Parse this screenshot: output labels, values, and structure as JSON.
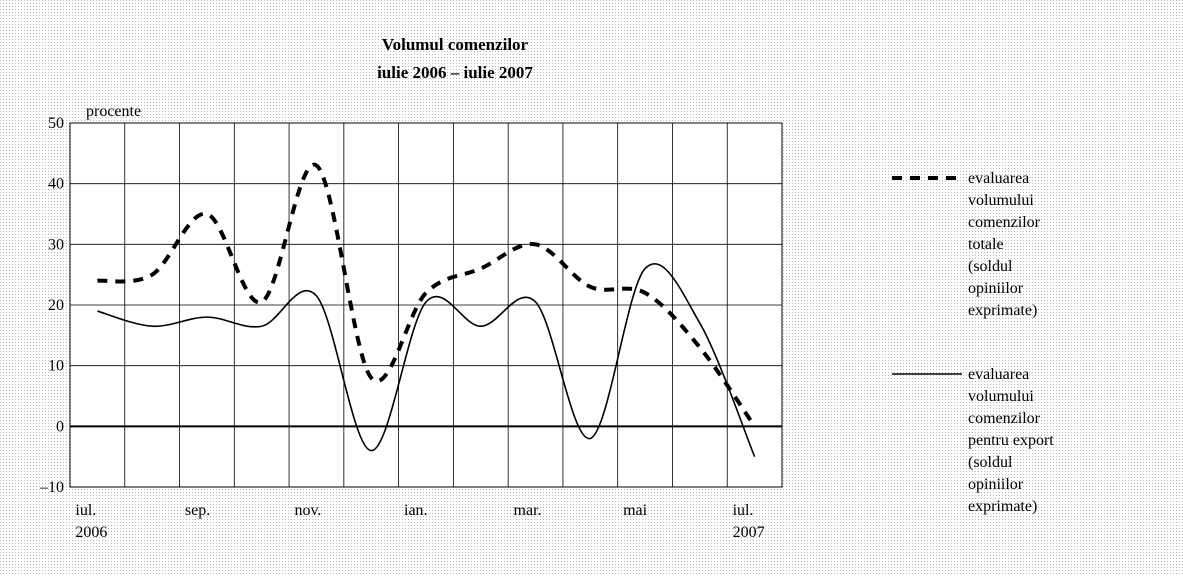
{
  "chart_data": {
    "type": "line",
    "title": "Volumul comenzilor",
    "subtitle": "iulie 2006 – iulie 2007",
    "ylabel": "procente",
    "categories": [
      "iul. 2006",
      null,
      "sep.",
      null,
      "nov.",
      null,
      "ian.",
      null,
      "mar.",
      null,
      "mai",
      null,
      "iul. 2007"
    ],
    "series": [
      {
        "name": "evaluarea volumului comenzilor totale (soldul opiniilor exprimate)",
        "color": "#000000",
        "dash": true,
        "values": [
          24,
          25,
          35,
          20.5,
          43,
          8,
          22,
          26,
          30,
          23,
          22,
          13,
          0
        ]
      },
      {
        "name": "evaluarea volumului comenzilor pentru export (soldul opiniilor exprimate)",
        "color": "#000000",
        "dash": false,
        "values": [
          19,
          16.5,
          18,
          16.5,
          21.5,
          -4,
          20.5,
          16.5,
          20.5,
          -2,
          26,
          17,
          -5
        ]
      }
    ],
    "ylim": [
      -10,
      50
    ],
    "yticks": [
      {
        "value": -10,
        "label": "–10"
      },
      0,
      10,
      20,
      30,
      40,
      50
    ],
    "grid": true,
    "legend": "right"
  }
}
